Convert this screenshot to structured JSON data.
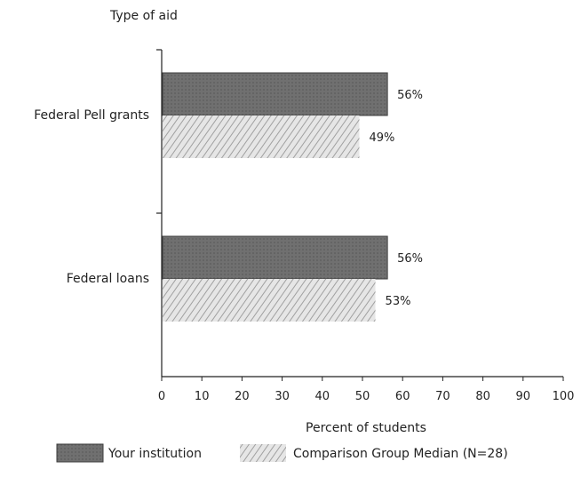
{
  "chart_data": {
    "type": "bar",
    "orientation": "horizontal",
    "title": "Type of aid",
    "xlabel": "Percent of students",
    "ylabel": "",
    "xlim": [
      0,
      100
    ],
    "xticks": [
      "0",
      "10",
      "20",
      "30",
      "40",
      "50",
      "60",
      "70",
      "80",
      "90",
      "100"
    ],
    "categories": [
      "Federal Pell grants",
      "Federal loans"
    ],
    "series": [
      {
        "name": "Your institution",
        "values": [
          56,
          56
        ],
        "labels": [
          "56%",
          "56%"
        ],
        "color": "#6e6e6e",
        "pattern": "solid-dark"
      },
      {
        "name": "Comparison Group Median (N=28)",
        "values": [
          49,
          53
        ],
        "labels": [
          "49%",
          "53%"
        ],
        "color": "#d2d2d2",
        "pattern": "hatched-light"
      }
    ],
    "legend_position": "bottom",
    "grid": false
  }
}
